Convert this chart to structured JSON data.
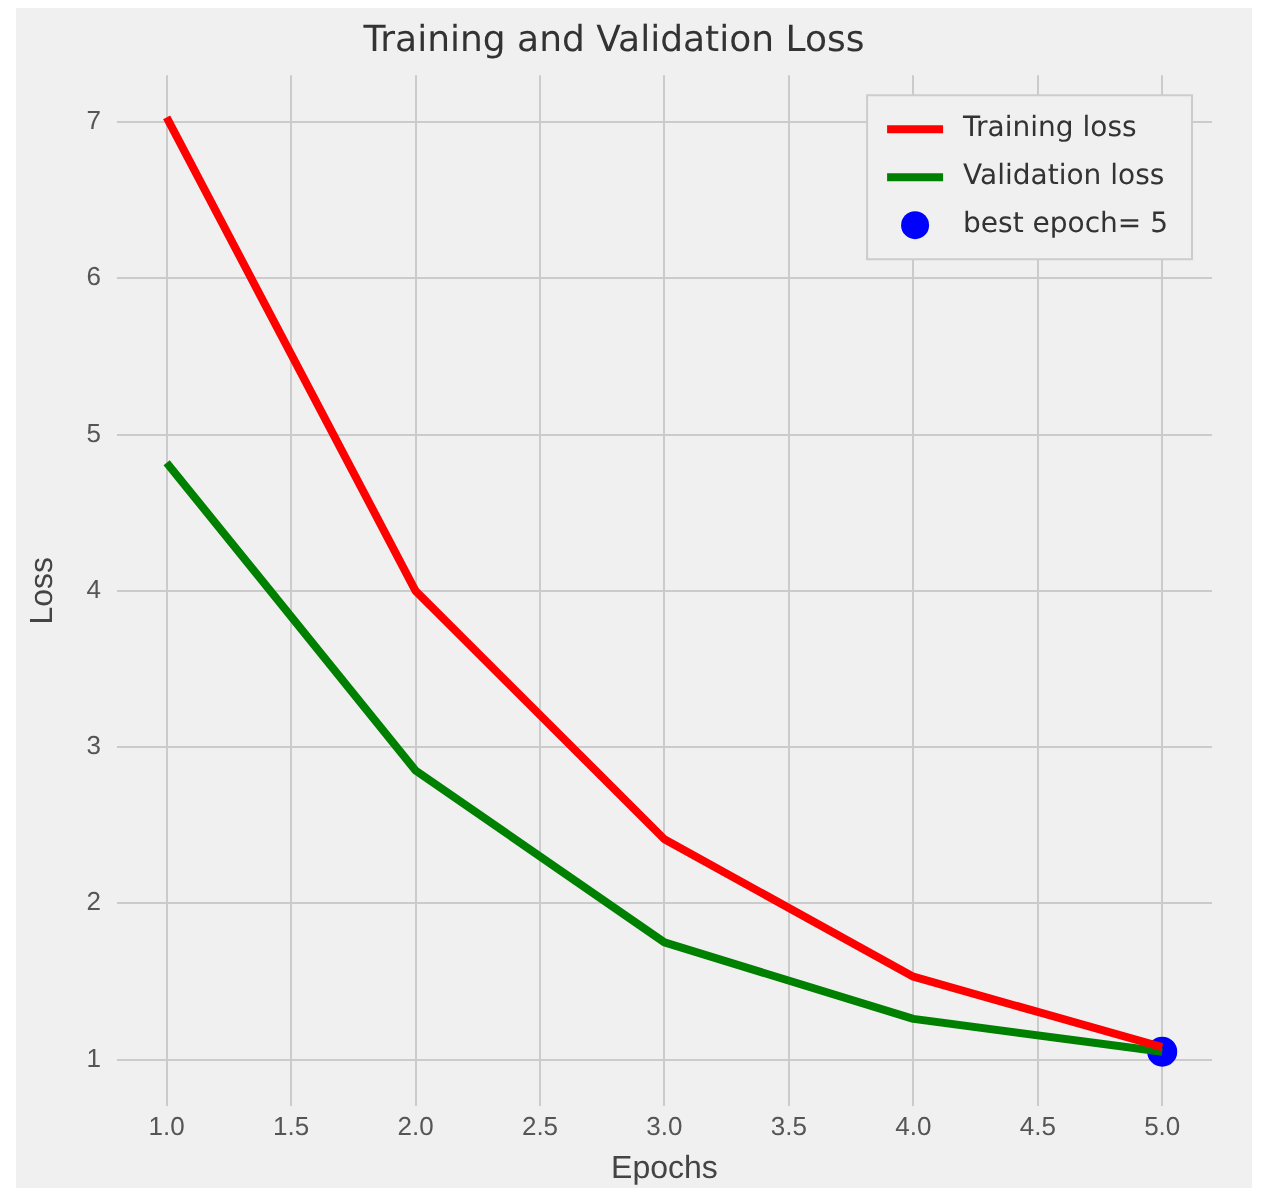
{
  "chart_data": {
    "type": "line",
    "title": "Training and Validation Loss",
    "xlabel": "Epochs",
    "ylabel": "Loss",
    "x": [
      1,
      2,
      3,
      4,
      5
    ],
    "series": [
      {
        "name": "Training loss",
        "color": "#ff0000",
        "values": [
          7.03,
          4.0,
          2.41,
          1.53,
          1.08
        ]
      },
      {
        "name": "Validation loss",
        "color": "#008000",
        "values": [
          4.82,
          2.85,
          1.75,
          1.26,
          1.05
        ]
      },
      {
        "name": "best epoch= 5",
        "type": "scatter",
        "marker": "circle",
        "color": "#0000ff",
        "x": [
          5
        ],
        "values": [
          1.05
        ]
      }
    ],
    "xlim": [
      0.8,
      5.2
    ],
    "xticks": [
      {
        "value": 1,
        "label": "1.0"
      },
      {
        "value": 1.5,
        "label": "1.5"
      },
      {
        "value": 2,
        "label": "2.0"
      },
      {
        "value": 2.5,
        "label": "2.5"
      },
      {
        "value": 3,
        "label": "3.0"
      },
      {
        "value": 3.5,
        "label": "3.5"
      },
      {
        "value": 4,
        "label": "4.0"
      },
      {
        "value": 4.5,
        "label": "4.5"
      },
      {
        "value": 5,
        "label": "5.0"
      }
    ],
    "ylim": [
      0.7,
      7.3
    ],
    "yticks": [
      1,
      2,
      3,
      4,
      5,
      6,
      7
    ],
    "grid": true,
    "legend": "top right"
  }
}
